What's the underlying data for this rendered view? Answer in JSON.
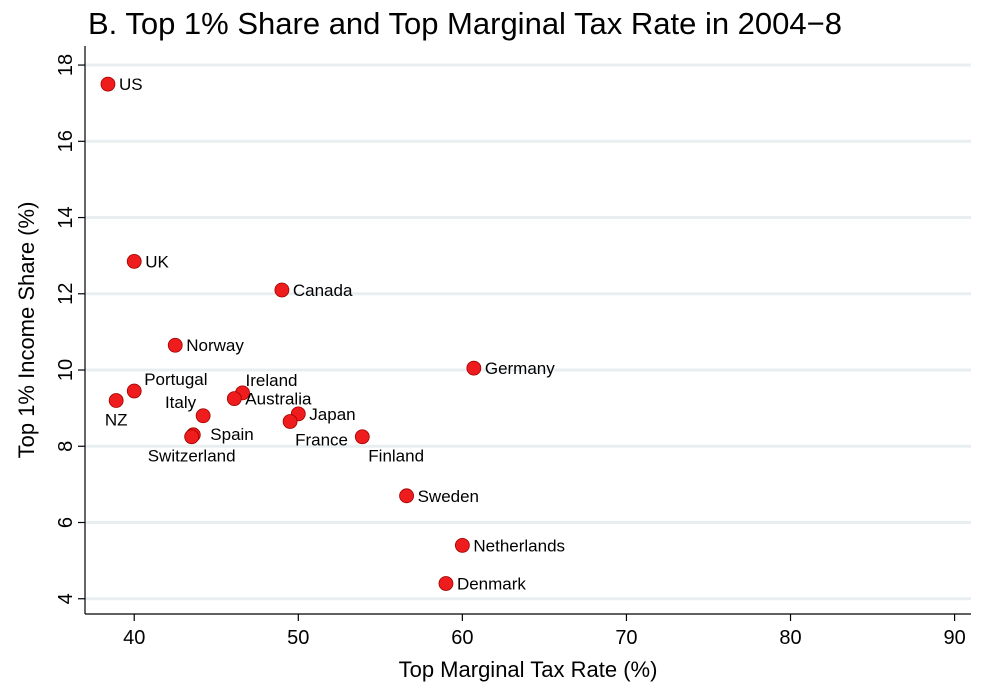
{
  "chart_data": {
    "type": "scatter",
    "title": "B. Top 1% Share and Top Marginal Tax Rate in 2004−8",
    "xlabel": "Top Marginal Tax Rate (%)",
    "ylabel": "Top 1% Income Share (%)",
    "xlim": [
      37,
      91
    ],
    "ylim": [
      3.6,
      18.5
    ],
    "x_ticks": [
      40,
      50,
      60,
      70,
      80,
      90
    ],
    "y_ticks": [
      4,
      6,
      8,
      10,
      12,
      14,
      16,
      18
    ],
    "grid": "horizontal",
    "marker_color": "#ee1c1c",
    "points": [
      {
        "label": "US",
        "x": 38.4,
        "y": 17.5
      },
      {
        "label": "UK",
        "x": 40.0,
        "y": 12.85
      },
      {
        "label": "Canada",
        "x": 49.0,
        "y": 12.1
      },
      {
        "label": "Norway",
        "x": 42.5,
        "y": 10.65
      },
      {
        "label": "Germany",
        "x": 60.7,
        "y": 10.05
      },
      {
        "label": "Portugal",
        "x": 40.0,
        "y": 9.45
      },
      {
        "label": "NZ",
        "x": 38.9,
        "y": 9.2
      },
      {
        "label": "Ireland",
        "x": 46.6,
        "y": 9.4
      },
      {
        "label": "Australia",
        "x": 46.1,
        "y": 9.25
      },
      {
        "label": "Italy",
        "x": 44.2,
        "y": 8.8
      },
      {
        "label": "Japan",
        "x": 50.0,
        "y": 8.85
      },
      {
        "label": "France",
        "x": 49.5,
        "y": 8.65
      },
      {
        "label": "Spain",
        "x": 43.6,
        "y": 8.3
      },
      {
        "label": "Switzerland",
        "x": 43.5,
        "y": 8.25
      },
      {
        "label": "Finland",
        "x": 53.9,
        "y": 8.25
      },
      {
        "label": "Sweden",
        "x": 56.6,
        "y": 6.7
      },
      {
        "label": "Netherlands",
        "x": 60.0,
        "y": 5.4
      },
      {
        "label": "Denmark",
        "x": 59.0,
        "y": 4.4
      }
    ]
  }
}
